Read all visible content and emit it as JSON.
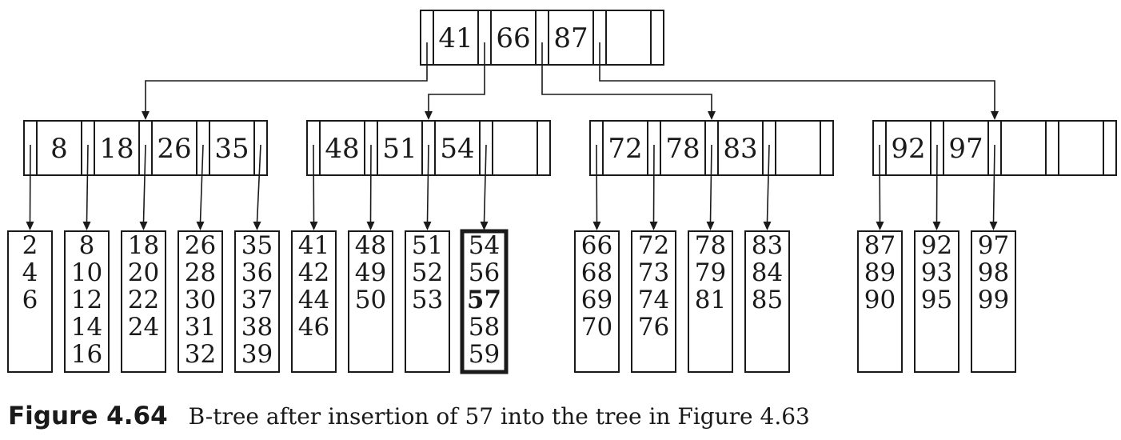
{
  "root": {
    "keys": [
      "41",
      "66",
      "87",
      ""
    ]
  },
  "internal": [
    {
      "keys": [
        "8",
        "18",
        "26",
        "35"
      ]
    },
    {
      "keys": [
        "48",
        "51",
        "54",
        ""
      ]
    },
    {
      "keys": [
        "72",
        "78",
        "83",
        ""
      ]
    },
    {
      "keys": [
        "92",
        "97",
        "",
        ""
      ]
    }
  ],
  "leaves": [
    {
      "values": [
        "2",
        "4",
        "6"
      ]
    },
    {
      "values": [
        "8",
        "10",
        "12",
        "14",
        "16"
      ]
    },
    {
      "values": [
        "18",
        "20",
        "22",
        "24"
      ]
    },
    {
      "values": [
        "26",
        "28",
        "30",
        "31",
        "32"
      ]
    },
    {
      "values": [
        "35",
        "36",
        "37",
        "38",
        "39"
      ]
    },
    {
      "values": [
        "41",
        "42",
        "44",
        "46"
      ]
    },
    {
      "values": [
        "48",
        "49",
        "50"
      ]
    },
    {
      "values": [
        "51",
        "52",
        "53"
      ]
    },
    {
      "values": [
        "54",
        "56",
        "57",
        "58",
        "59"
      ],
      "highlight": true,
      "bold_value": "57"
    },
    {
      "values": [
        "66",
        "68",
        "69",
        "70"
      ]
    },
    {
      "values": [
        "72",
        "73",
        "74",
        "76"
      ]
    },
    {
      "values": [
        "78",
        "79",
        "81"
      ]
    },
    {
      "values": [
        "83",
        "84",
        "85"
      ]
    },
    {
      "values": [
        "87",
        "89",
        "90"
      ]
    },
    {
      "values": [
        "92",
        "93",
        "95"
      ]
    },
    {
      "values": [
        "97",
        "98",
        "99"
      ]
    }
  ],
  "caption": {
    "number": "Figure 4.64",
    "text": "B-tree after insertion of 57 into the tree in Figure 4.63"
  }
}
